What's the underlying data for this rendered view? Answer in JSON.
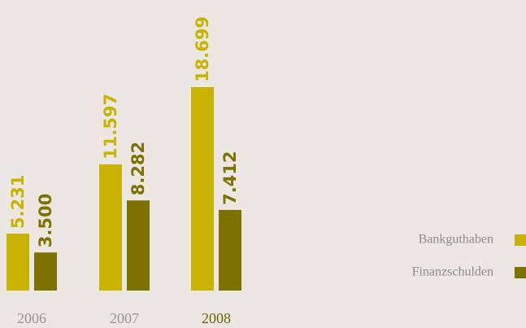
{
  "chart_data": {
    "type": "bar",
    "categories": [
      "2006",
      "2007",
      "2008"
    ],
    "series": [
      {
        "name": "Bankguthaben",
        "color": "#c8b400",
        "values": [
          5231,
          11597,
          18699
        ],
        "value_labels": [
          "5.231",
          "11.597",
          "18.699"
        ]
      },
      {
        "name": "Finanzschulden",
        "color": "#7d7100",
        "values": [
          3500,
          8282,
          7412
        ],
        "value_labels": [
          "3.500",
          "8.282",
          "7.412"
        ]
      }
    ]
  }
}
